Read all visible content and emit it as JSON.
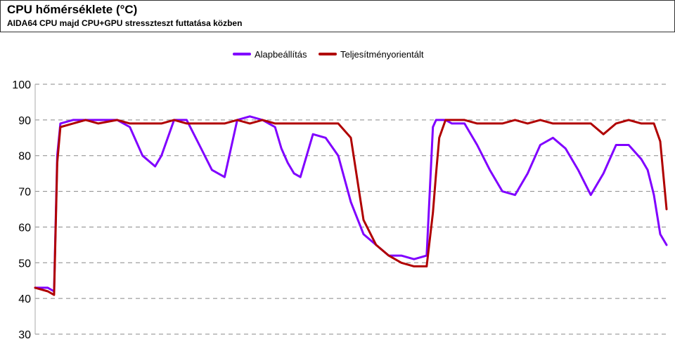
{
  "header": {
    "title": "CPU hőmérséklete (°C)",
    "subtitle": "AIDA64 CPU majd CPU+GPU stresszteszt futtatása közben"
  },
  "chart_data": {
    "type": "line",
    "title": "CPU hőmérséklete (°C)",
    "subtitle": "AIDA64 CPU majd CPU+GPU stresszteszt futtatása közben",
    "xlabel": "",
    "ylabel": "",
    "ylim": [
      30,
      100
    ],
    "yticks": [
      30,
      40,
      50,
      60,
      70,
      80,
      90,
      100
    ],
    "grid": true,
    "legend_position": "top-center",
    "x": [
      0,
      2,
      3,
      3.5,
      4,
      6,
      8,
      10,
      13,
      15,
      17,
      19,
      20,
      22,
      24,
      26,
      28,
      30,
      32,
      34,
      36,
      38,
      39,
      40,
      41,
      42,
      44,
      46,
      48,
      50,
      52,
      54,
      56,
      58,
      60,
      62,
      63,
      63.5,
      64,
      65,
      66,
      68,
      70,
      72,
      74,
      76,
      78,
      80,
      82,
      84,
      86,
      88,
      90,
      92,
      94,
      96,
      97,
      98,
      99,
      100
    ],
    "series": [
      {
        "name": "Alapbeállítás",
        "color": "#8000ff",
        "values": [
          43,
          43,
          42,
          80,
          89,
          90,
          90,
          90,
          90,
          88,
          80,
          77,
          80,
          90,
          90,
          83,
          76,
          74,
          90,
          91,
          90,
          88,
          82,
          78,
          75,
          74,
          86,
          85,
          80,
          67,
          58,
          55,
          52,
          52,
          51,
          52,
          88,
          90,
          90,
          90,
          89,
          89,
          83,
          76,
          70,
          69,
          75,
          83,
          85,
          82,
          76,
          69,
          75,
          83,
          83,
          79,
          76,
          69,
          58,
          55
        ]
      },
      {
        "name": "Teljesítményorientált",
        "color": "#b00000",
        "values": [
          43,
          42,
          41,
          78,
          88,
          89,
          90,
          89,
          90,
          89,
          89,
          89,
          89,
          90,
          89,
          89,
          89,
          89,
          90,
          89,
          90,
          89,
          89,
          89,
          89,
          89,
          89,
          89,
          89,
          85,
          62,
          55,
          52,
          50,
          49,
          49,
          64,
          75,
          85,
          90,
          90,
          90,
          89,
          89,
          89,
          90,
          89,
          90,
          89,
          89,
          89,
          89,
          86,
          89,
          90,
          89,
          89,
          89,
          84,
          65
        ]
      }
    ]
  }
}
